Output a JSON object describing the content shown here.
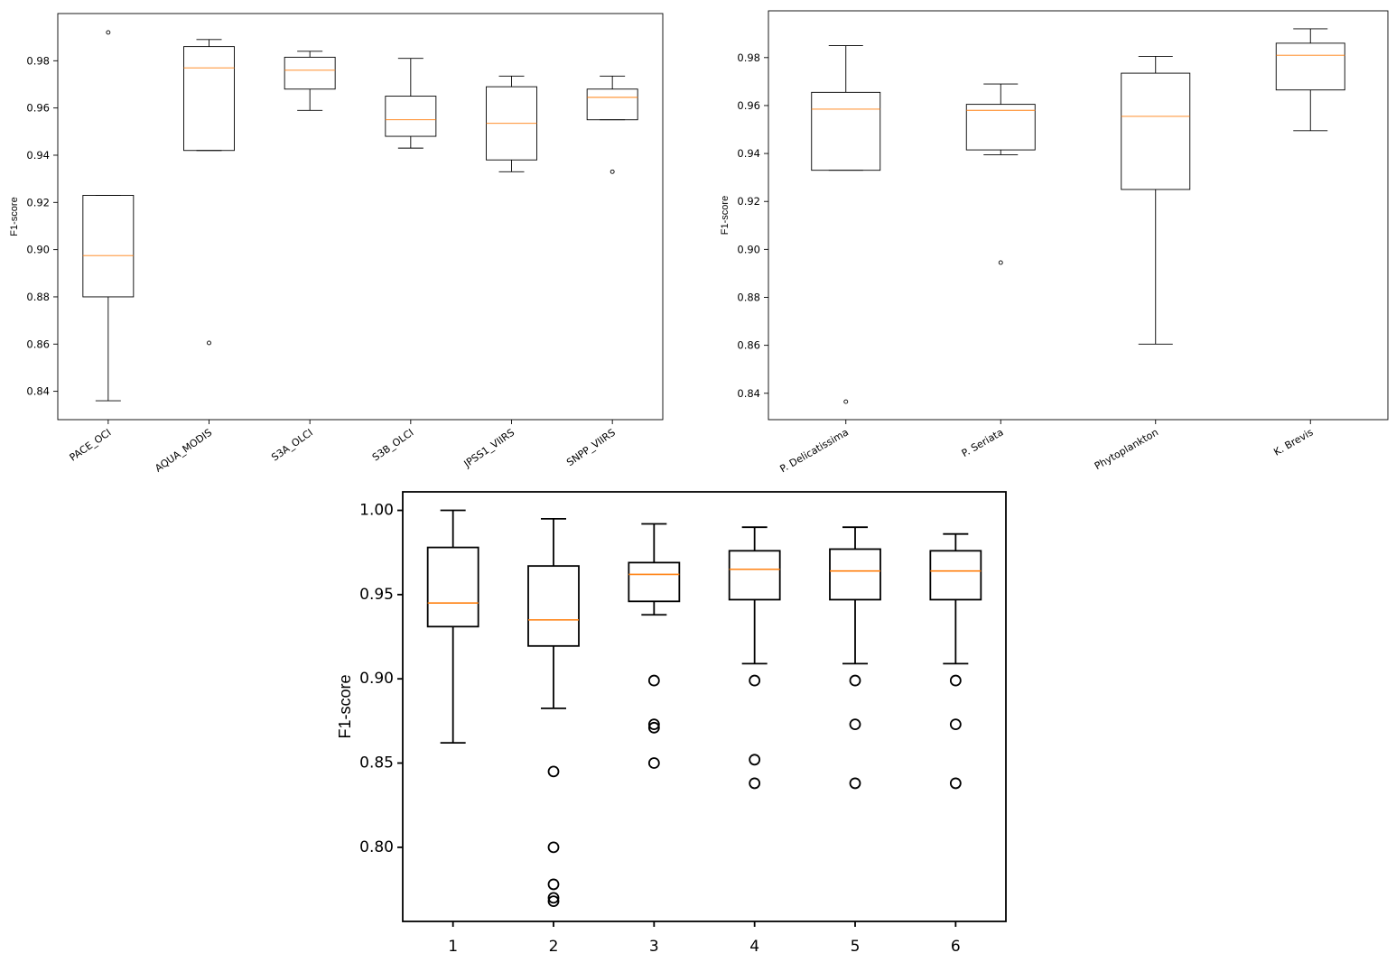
{
  "chart_data": [
    {
      "type": "box",
      "id": "satellites",
      "title": "",
      "xlabel": "",
      "ylabel": "F1-score",
      "ylim": [
        0.828,
        1.0
      ],
      "yticks": [
        0.84,
        0.86,
        0.88,
        0.9,
        0.92,
        0.94,
        0.96,
        0.98
      ],
      "ytick_labels": [
        "0.84",
        "0.86",
        "0.88",
        "0.90",
        "0.92",
        "0.94",
        "0.96",
        "0.98"
      ],
      "categories": [
        "PACE_OCI",
        "AQUA_MODIS",
        "S3A_OLCI",
        "S3B_OLCI",
        "JPSS1_VIIRS",
        "SNPP_VIIRS"
      ],
      "boxes": [
        {
          "whislo": 0.836,
          "q1": 0.88,
          "med": 0.8975,
          "q3": 0.923,
          "whishi": 0.923,
          "fliers": [
            0.992
          ]
        },
        {
          "whislo": 0.942,
          "q1": 0.942,
          "med": 0.977,
          "q3": 0.986,
          "whishi": 0.989,
          "fliers": [
            0.8605
          ]
        },
        {
          "whislo": 0.959,
          "q1": 0.968,
          "med": 0.976,
          "q3": 0.9815,
          "whishi": 0.984,
          "fliers": []
        },
        {
          "whislo": 0.943,
          "q1": 0.948,
          "med": 0.955,
          "q3": 0.965,
          "whishi": 0.981,
          "fliers": []
        },
        {
          "whislo": 0.933,
          "q1": 0.938,
          "med": 0.9535,
          "q3": 0.969,
          "whishi": 0.9735,
          "fliers": []
        },
        {
          "whislo": 0.955,
          "q1": 0.955,
          "med": 0.9645,
          "q3": 0.968,
          "whishi": 0.9735,
          "fliers": [
            0.933
          ]
        }
      ]
    },
    {
      "type": "box",
      "id": "species",
      "title": "",
      "xlabel": "",
      "ylabel": "F1-score",
      "ylim": [
        0.829,
        0.9995
      ],
      "yticks": [
        0.84,
        0.86,
        0.88,
        0.9,
        0.92,
        0.94,
        0.96,
        0.98
      ],
      "ytick_labels": [
        "0.84",
        "0.86",
        "0.88",
        "0.90",
        "0.92",
        "0.94",
        "0.96",
        "0.98"
      ],
      "categories": [
        "P. Delicatissima",
        "P. Seriata",
        "Phytoplankton",
        "K. Brevis"
      ],
      "boxes": [
        {
          "whislo": 0.933,
          "q1": 0.933,
          "med": 0.9585,
          "q3": 0.9655,
          "whishi": 0.985,
          "fliers": [
            0.8365
          ]
        },
        {
          "whislo": 0.9395,
          "q1": 0.9415,
          "med": 0.958,
          "q3": 0.9605,
          "whishi": 0.969,
          "fliers": [
            0.8945
          ]
        },
        {
          "whislo": 0.8605,
          "q1": 0.925,
          "med": 0.9555,
          "q3": 0.9735,
          "whishi": 0.9805,
          "fliers": []
        },
        {
          "whislo": 0.9495,
          "q1": 0.9665,
          "med": 0.981,
          "q3": 0.986,
          "whishi": 0.992,
          "fliers": []
        }
      ]
    },
    {
      "type": "box",
      "id": "runs",
      "title": "",
      "xlabel": "",
      "ylabel": "F1-score",
      "ylim": [
        0.756,
        1.011
      ],
      "yticks": [
        0.8,
        0.85,
        0.9,
        0.95,
        1.0
      ],
      "ytick_labels": [
        "0.80",
        "0.85",
        "0.90",
        "0.95",
        "1.00"
      ],
      "categories": [
        "1",
        "2",
        "3",
        "4",
        "5",
        "6"
      ],
      "boxes": [
        {
          "whislo": 0.862,
          "q1": 0.931,
          "med": 0.945,
          "q3": 0.978,
          "whishi": 1.0,
          "fliers": []
        },
        {
          "whislo": 0.8825,
          "q1": 0.9195,
          "med": 0.935,
          "q3": 0.967,
          "whishi": 0.995,
          "fliers": [
            0.845,
            0.8,
            0.778,
            0.77,
            0.768
          ]
        },
        {
          "whislo": 0.938,
          "q1": 0.946,
          "med": 0.962,
          "q3": 0.969,
          "whishi": 0.992,
          "fliers": [
            0.899,
            0.873,
            0.871,
            0.85
          ]
        },
        {
          "whislo": 0.909,
          "q1": 0.947,
          "med": 0.965,
          "q3": 0.976,
          "whishi": 0.99,
          "fliers": [
            0.899,
            0.852,
            0.838
          ]
        },
        {
          "whislo": 0.909,
          "q1": 0.947,
          "med": 0.964,
          "q3": 0.977,
          "whishi": 0.99,
          "fliers": [
            0.899,
            0.873,
            0.838
          ]
        },
        {
          "whislo": 0.909,
          "q1": 0.947,
          "med": 0.964,
          "q3": 0.976,
          "whishi": 0.986,
          "fliers": [
            0.899,
            0.873,
            0.838
          ]
        }
      ]
    }
  ]
}
